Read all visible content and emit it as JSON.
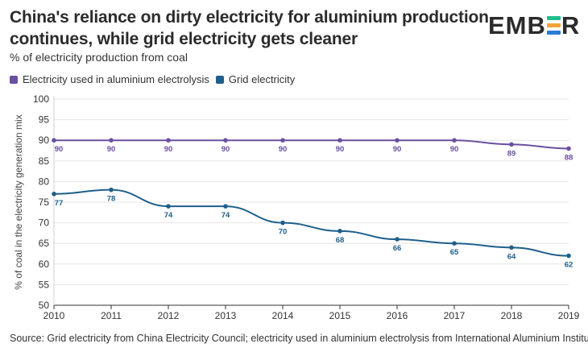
{
  "title_lines": [
    "China's reliance on dirty electricity for aluminium production",
    "continues, while grid electricity gets cleaner"
  ],
  "subtitle": "% of electricity production from coal",
  "logo": {
    "before": "EMB",
    "after": "R",
    "mark_colors": [
      "#1fbf8f",
      "#f2a33a",
      "#2b7bd8"
    ]
  },
  "source": "Source: Grid electricity from China Electricity Council; electricity used in aluminium electrolysis from International Aluminium Institute",
  "chart_data": {
    "type": "line",
    "x": [
      2010,
      2011,
      2012,
      2013,
      2014,
      2015,
      2016,
      2017,
      2018,
      2019
    ],
    "series": [
      {
        "name": "Electricity used in aluminium electrolysis",
        "color": "#6b4fa0",
        "values": [
          90,
          90,
          90,
          90,
          90,
          90,
          90,
          90,
          89,
          88
        ]
      },
      {
        "name": "Grid electricity",
        "color": "#1e5f8a",
        "values": [
          77,
          78,
          74,
          74,
          70,
          68,
          66,
          65,
          64,
          62
        ]
      }
    ],
    "ylabel": "% of coal in the electricity generation mix",
    "xlabel": "",
    "ylim": [
      50,
      100
    ],
    "yticks": [
      50,
      55,
      60,
      65,
      70,
      75,
      80,
      85,
      90,
      95,
      100
    ],
    "grid": true
  }
}
